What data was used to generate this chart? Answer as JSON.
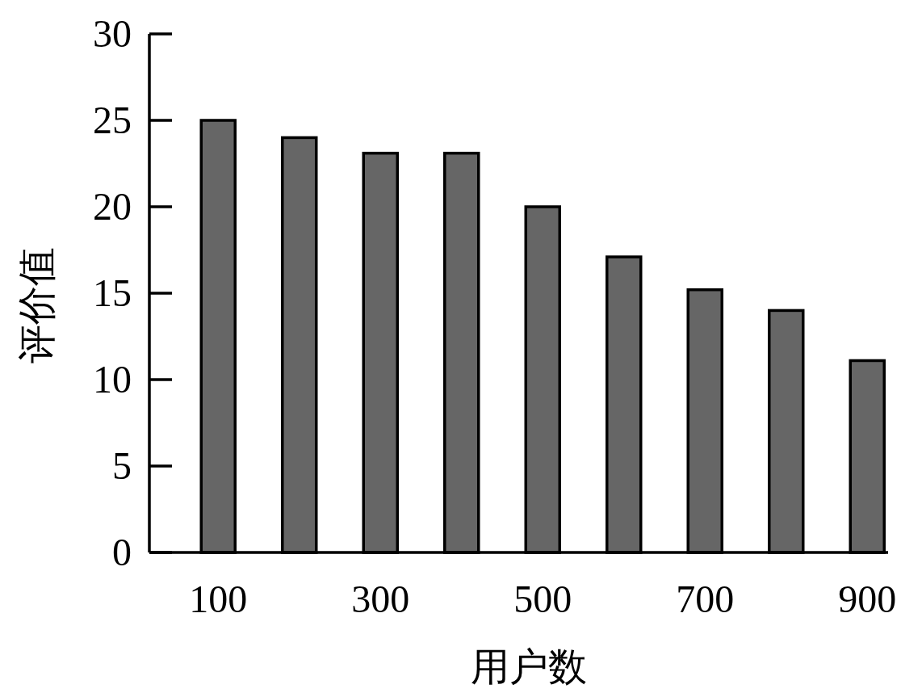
{
  "chart_data": {
    "type": "bar",
    "xlabel": "用户数",
    "ylabel": "评价值",
    "categories": [
      "100",
      null,
      "300",
      null,
      "500",
      null,
      "700",
      null,
      "900"
    ],
    "values": [
      25,
      24,
      23.1,
      23.1,
      20,
      17.1,
      15.2,
      14,
      11.1
    ],
    "color": "#666666",
    "ylim": [
      0,
      30
    ],
    "yticks": [
      0,
      5,
      10,
      15,
      20,
      25,
      30
    ],
    "grid": false
  }
}
